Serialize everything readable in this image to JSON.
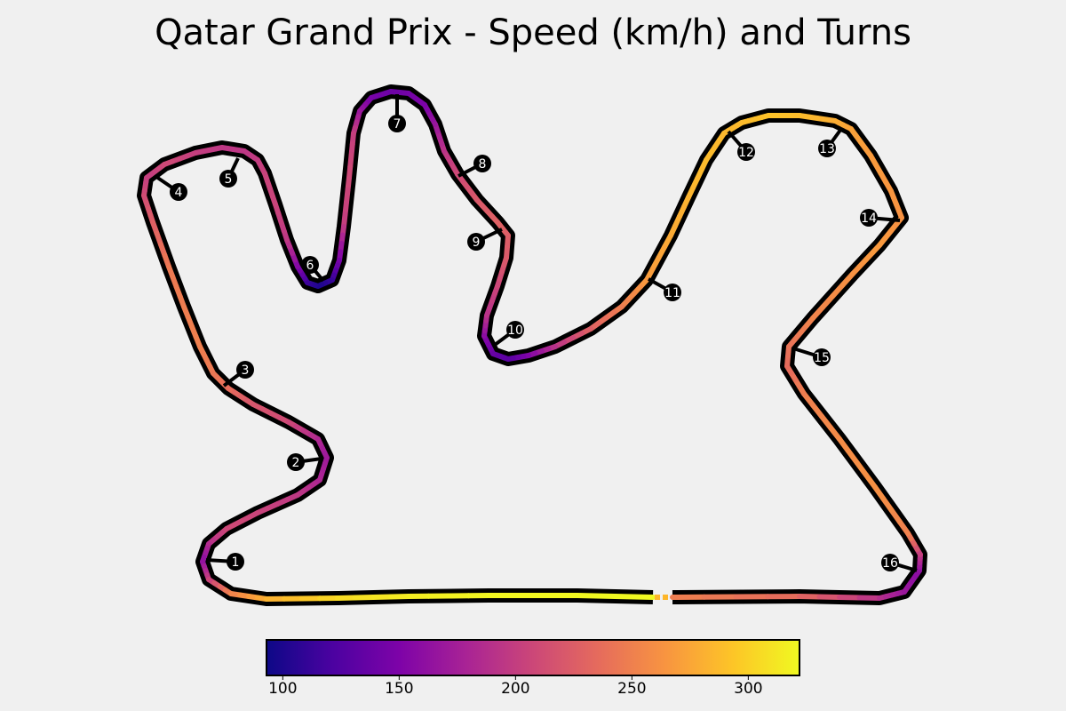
{
  "title": "Qatar Grand Prix - Speed (km/h) and Turns",
  "chart_data": {
    "type": "track_map",
    "title": "Qatar Grand Prix - Speed (km/h) and Turns",
    "colormap": "plasma",
    "colorbar": {
      "range": [
        93,
        322
      ],
      "ticks": [
        100,
        150,
        200,
        250,
        300
      ],
      "tick_labels": [
        "100",
        "150",
        "200",
        "250",
        "300"
      ],
      "orientation": "horizontal",
      "placement": "bottom"
    },
    "turns": [
      {
        "number": "1",
        "speed": 160
      },
      {
        "number": "2",
        "speed": 180
      },
      {
        "number": "3",
        "speed": 240
      },
      {
        "number": "4",
        "speed": 190
      },
      {
        "number": "5",
        "speed": 200
      },
      {
        "number": "6",
        "speed": 110
      },
      {
        "number": "7",
        "speed": 150
      },
      {
        "number": "8",
        "speed": 210
      },
      {
        "number": "9",
        "speed": 225
      },
      {
        "number": "10",
        "speed": 145
      },
      {
        "number": "11",
        "speed": 275
      },
      {
        "number": "12",
        "speed": 290
      },
      {
        "number": "13",
        "speed": 275
      },
      {
        "number": "14",
        "speed": 260
      },
      {
        "number": "15",
        "speed": 235
      },
      {
        "number": "16",
        "speed": 175
      }
    ]
  }
}
